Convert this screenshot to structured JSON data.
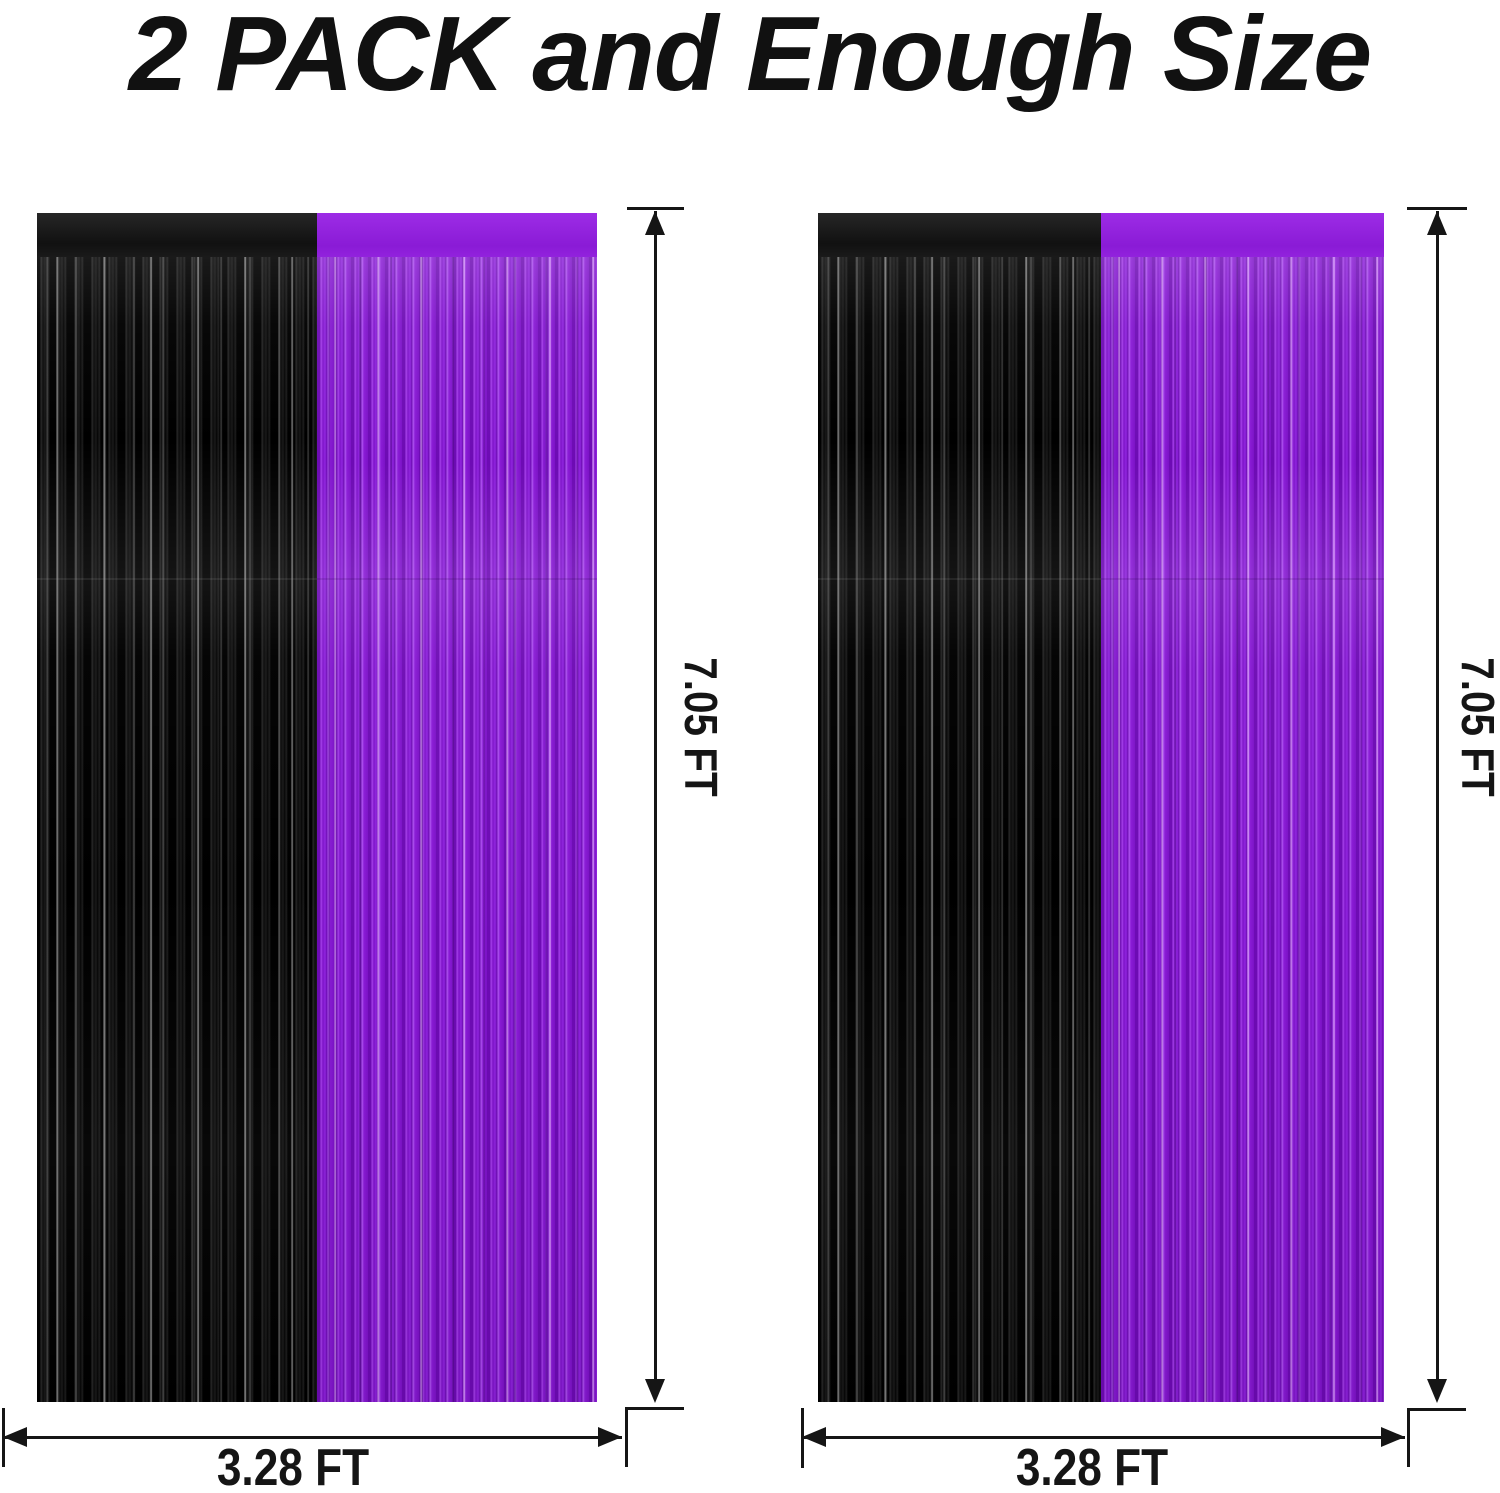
{
  "title": "2 PACK and Enough Size",
  "panels": [
    {
      "height_label": "7.05 FT",
      "width_label": "3.28 FT"
    },
    {
      "height_label": "7.05 FT",
      "width_label": "3.28 FT"
    }
  ],
  "colors": {
    "purple_foil": "#8a1bd6",
    "black_foil": "#0a0a0a",
    "dimension_line": "#151515",
    "title_text": "#111111"
  }
}
